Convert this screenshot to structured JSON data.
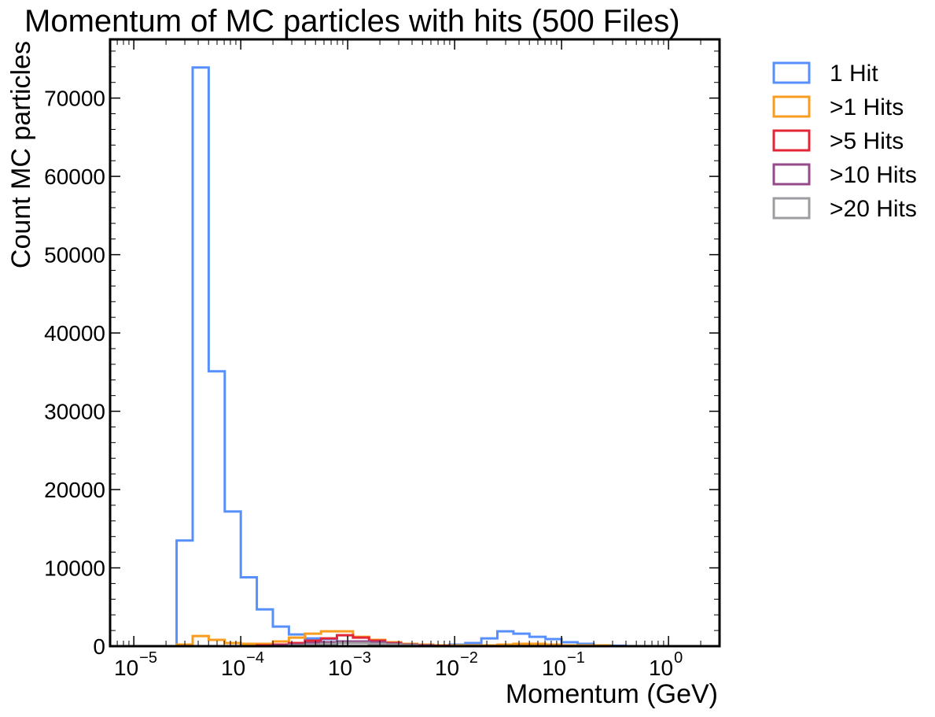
{
  "chart_data": {
    "type": "histogram-step",
    "title": "Momentum of MC particles with hits (500 Files)",
    "xlabel": "Momentum (GeV)",
    "ylabel": "Count MC particles",
    "xscale": "log",
    "xlim": [
      6e-06,
      3.0
    ],
    "ylim": [
      0,
      77500
    ],
    "x_ticks": [
      {
        "value": 1e-05,
        "base": "10",
        "exp": "−5"
      },
      {
        "value": 0.0001,
        "base": "10",
        "exp": "−4"
      },
      {
        "value": 0.001,
        "base": "10",
        "exp": "−3"
      },
      {
        "value": 0.01,
        "base": "10",
        "exp": "−2"
      },
      {
        "value": 0.1,
        "base": "10",
        "exp": "−1"
      },
      {
        "value": 1,
        "base": "10",
        "exp": "0"
      }
    ],
    "y_ticks": [
      0,
      10000,
      20000,
      30000,
      40000,
      50000,
      60000,
      70000
    ],
    "legend_position": "outside-top-right",
    "bin_edges_log10": [
      -4.6,
      -4.45,
      -4.3,
      -4.15,
      -4.0,
      -3.85,
      -3.7,
      -3.55,
      -3.4,
      -3.25,
      -3.1,
      -2.95,
      -2.8,
      -2.65,
      -2.5,
      -2.35,
      -2.2,
      -2.05,
      -1.9,
      -1.75,
      -1.6,
      -1.45,
      -1.3,
      -1.15,
      -1.0,
      -0.85,
      -0.7,
      -0.55,
      -0.4,
      -0.25,
      -0.1
    ],
    "series": [
      {
        "name": "1 Hit",
        "color": "#5790fc",
        "values": [
          13500,
          73900,
          35100,
          17200,
          8800,
          4700,
          2500,
          1500,
          1000,
          900,
          600,
          400,
          300,
          200,
          100,
          100,
          100,
          200,
          400,
          1000,
          1900,
          1600,
          1200,
          900,
          500,
          300,
          100,
          50,
          0,
          0
        ]
      },
      {
        "name": ">1 Hits",
        "color": "#f89c20",
        "values": [
          200,
          1300,
          800,
          400,
          300,
          300,
          600,
          1100,
          1600,
          1900,
          1900,
          1200,
          800,
          500,
          300,
          200,
          100,
          100,
          100,
          100,
          200,
          300,
          300,
          200,
          100,
          100,
          100,
          0,
          0,
          0
        ]
      },
      {
        "name": ">5 Hits",
        "color": "#e42536",
        "values": [
          0,
          0,
          0,
          0,
          0,
          100,
          200,
          400,
          700,
          1000,
          1400,
          1100,
          700,
          400,
          200,
          100,
          50,
          0,
          0,
          0,
          0,
          0,
          0,
          0,
          0,
          0,
          0,
          0,
          0,
          0
        ]
      },
      {
        "name": ">10 Hits",
        "color": "#964a8b",
        "values": [
          0,
          0,
          0,
          0,
          0,
          0,
          100,
          200,
          400,
          500,
          600,
          600,
          500,
          300,
          200,
          100,
          0,
          0,
          0,
          0,
          0,
          0,
          0,
          0,
          0,
          0,
          0,
          0,
          0,
          0
        ]
      },
      {
        "name": ">20 Hits",
        "color": "#9c9ca1",
        "values": [
          0,
          0,
          0,
          0,
          0,
          0,
          0,
          100,
          200,
          300,
          400,
          400,
          300,
          200,
          100,
          0,
          0,
          0,
          0,
          0,
          0,
          0,
          0,
          0,
          0,
          0,
          0,
          0,
          0,
          0
        ]
      }
    ]
  }
}
